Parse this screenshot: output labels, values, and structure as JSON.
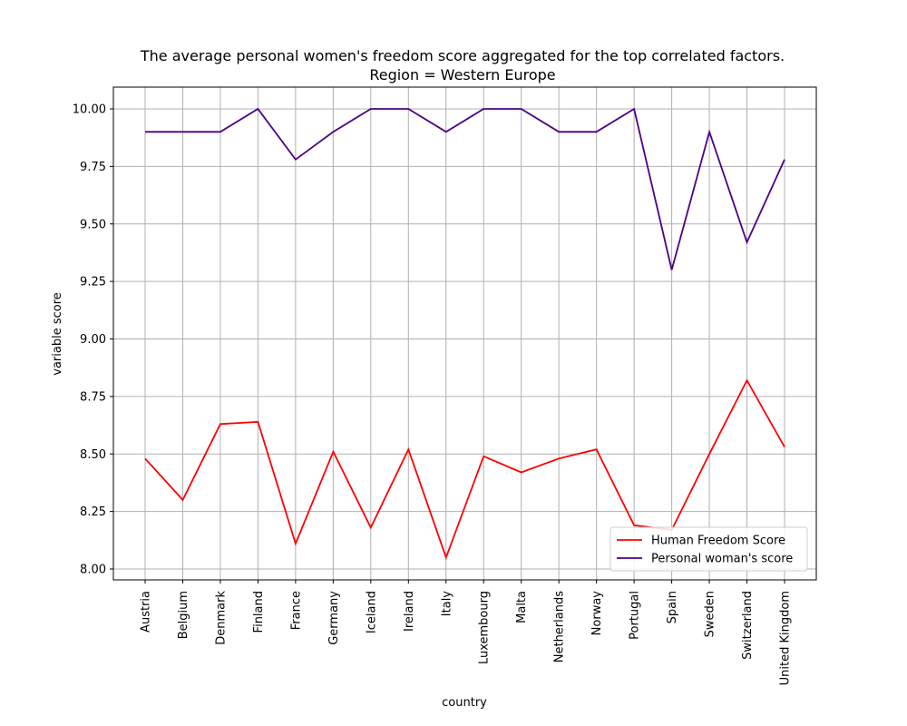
{
  "chart_data": {
    "type": "line",
    "title": "The average personal women's freedom score aggregated for the top correlated factors.",
    "subtitle": "Region = Western Europe",
    "xlabel": "country",
    "ylabel": "variable score",
    "ylim": [
      7.95,
      10.1
    ],
    "yticks": [
      "8.00",
      "8.25",
      "8.50",
      "8.75",
      "9.00",
      "9.25",
      "9.50",
      "9.75",
      "10.00"
    ],
    "grid": true,
    "legend_position": "lower-right",
    "categories": [
      "Austria",
      "Belgium",
      "Denmark",
      "Finland",
      "France",
      "Germany",
      "Iceland",
      "Ireland",
      "Italy",
      "Luxembourg",
      "Malta",
      "Netherlands",
      "Norway",
      "Portugal",
      "Spain",
      "Sweden",
      "Switzerland",
      "United Kingdom"
    ],
    "series": [
      {
        "name": "Human Freedom Score",
        "color": "#ff0000",
        "values": [
          8.48,
          8.3,
          8.63,
          8.64,
          8.11,
          8.51,
          8.18,
          8.52,
          8.05,
          8.49,
          8.42,
          8.48,
          8.52,
          8.19,
          8.17,
          8.5,
          8.82,
          8.53
        ]
      },
      {
        "name": "Personal woman's score",
        "color": "#4b0082",
        "values": [
          9.9,
          9.9,
          9.9,
          10.0,
          9.78,
          9.9,
          10.0,
          10.0,
          9.9,
          10.0,
          10.0,
          9.9,
          9.9,
          10.0,
          9.3,
          9.9,
          9.42,
          9.78
        ]
      }
    ]
  }
}
